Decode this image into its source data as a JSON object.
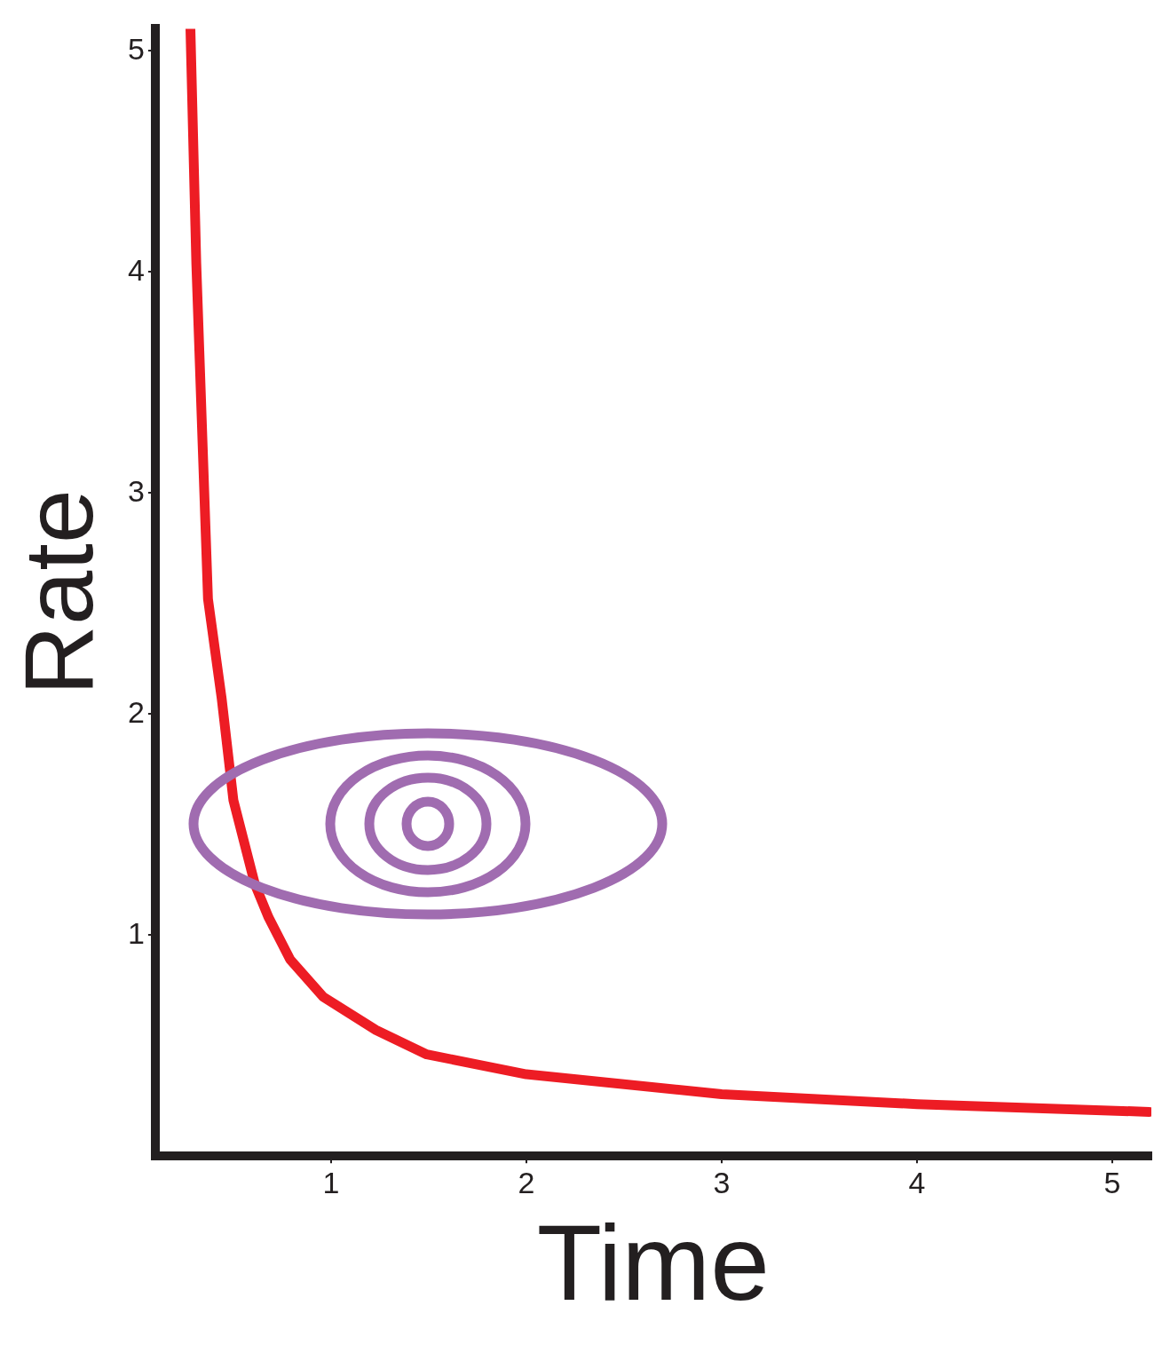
{
  "chart_data": {
    "type": "line",
    "xlabel": "Time",
    "ylabel": "Rate",
    "xlim": [
      0.1,
      5.2
    ],
    "ylim": [
      0,
      5.1
    ],
    "xticks": [
      1,
      2,
      3,
      4,
      5
    ],
    "yticks": [
      1,
      2,
      3,
      4,
      5
    ],
    "grid": false,
    "legend": false,
    "marker": "none",
    "line_style": "solid",
    "series": [
      {
        "color": "#ed1c24",
        "x": [
          0.28,
          0.31,
          0.37,
          0.44,
          0.5,
          0.61,
          0.68,
          0.79,
          0.96,
          1.23,
          1.49,
          2,
          3,
          4,
          5.19
        ],
        "values": [
          5.1,
          4.04,
          2.52,
          2.07,
          1.61,
          1.23,
          1.08,
          0.89,
          0.72,
          0.57,
          0.46,
          0.37,
          0.28,
          0.235,
          0.2
        ]
      }
    ]
  }
}
